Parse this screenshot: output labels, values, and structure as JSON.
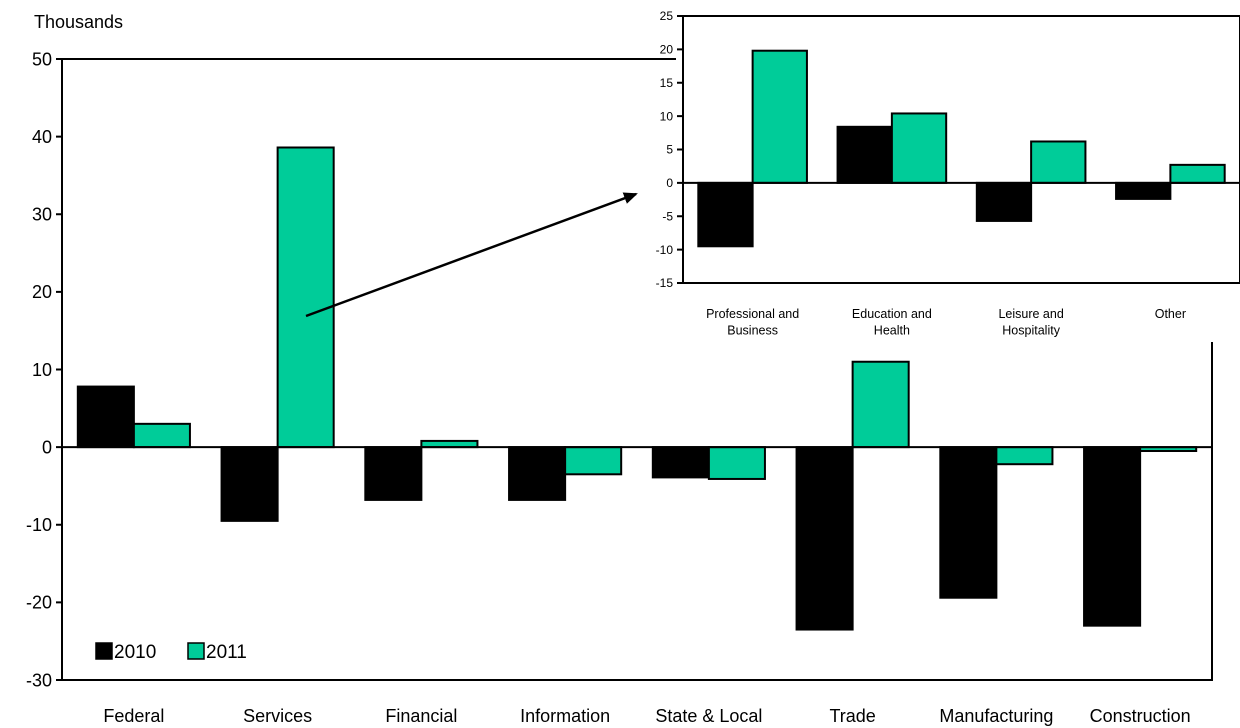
{
  "chart_data": [
    {
      "type": "bar",
      "ylabel": "Thousands",
      "ylim": [
        -30,
        50
      ],
      "yticks": [
        -30,
        -20,
        -10,
        0,
        10,
        20,
        30,
        40,
        50
      ],
      "categories": [
        "Federal",
        "Services",
        "Financial",
        "Information",
        "State & Local",
        "Trade",
        "Manufacturing",
        "Construction"
      ],
      "series": [
        {
          "name": "2010",
          "color": "#000000",
          "values": [
            7.8,
            -9.5,
            -6.8,
            -6.8,
            -3.9,
            -23.5,
            -19.4,
            -23.0
          ]
        },
        {
          "name": "2011",
          "color": "#00cc99",
          "values": [
            3.0,
            38.6,
            0.8,
            -3.5,
            -4.1,
            11.0,
            -2.2,
            -0.5
          ]
        }
      ],
      "legend_position": "bottom-left",
      "grid": false
    },
    {
      "type": "bar",
      "inset": true,
      "inset_of": "Services",
      "ylim": [
        -15,
        25
      ],
      "yticks": [
        -15,
        -10,
        -5,
        0,
        5,
        10,
        15,
        20,
        25
      ],
      "categories": [
        [
          "Professional and",
          "Business"
        ],
        [
          "Education and",
          "Health"
        ],
        [
          "Leisure and",
          "Hospitality"
        ],
        [
          "Other"
        ]
      ],
      "series": [
        {
          "name": "2010",
          "color": "#000000",
          "values": [
            -9.5,
            8.4,
            -5.7,
            -2.4
          ]
        },
        {
          "name": "2011",
          "color": "#00cc99",
          "values": [
            19.8,
            10.4,
            6.2,
            2.7
          ]
        }
      ],
      "grid": false
    }
  ]
}
